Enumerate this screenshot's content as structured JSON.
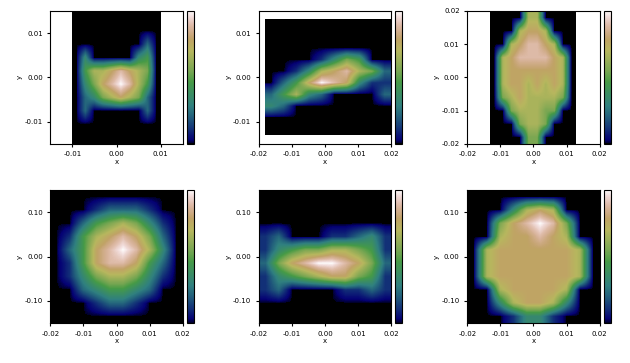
{
  "chart_data": [
    {
      "type": "heatmap",
      "xlabel": "x",
      "ylabel": "y",
      "xlim": [
        -0.015,
        0.015
      ],
      "ylim": [
        -0.015,
        0.015
      ],
      "xticks": [
        {
          "value": -0.01,
          "label": "-0.01"
        },
        {
          "value": 0,
          "label": "0.00"
        },
        {
          "value": 0.01,
          "label": "0.01"
        }
      ],
      "yticks": [
        {
          "value": -0.01,
          "label": "-0.01"
        },
        {
          "value": 0,
          "label": "0.00"
        },
        {
          "value": 0.01,
          "label": "0.01"
        }
      ],
      "extent": [
        -0.01,
        0.01,
        -0.015,
        0.015
      ],
      "clim": [
        0,
        9
      ],
      "cells": [
        [
          0,
          0,
          0,
          0,
          0,
          0,
          0,
          0,
          0,
          0
        ],
        [
          0,
          0,
          0,
          0,
          0,
          0,
          0,
          0,
          0,
          0
        ],
        [
          0,
          0,
          0,
          0,
          0,
          0,
          0,
          0,
          2,
          0
        ],
        [
          0,
          3,
          0,
          0,
          0,
          0,
          0,
          3,
          4,
          0
        ],
        [
          0,
          4,
          6,
          6,
          7,
          8,
          7,
          6,
          5,
          0
        ],
        [
          0,
          3,
          5,
          7,
          8,
          9,
          8,
          6,
          4,
          0
        ],
        [
          0,
          2,
          3,
          5,
          6,
          7,
          6,
          5,
          2,
          0
        ],
        [
          0,
          2,
          0,
          0,
          0,
          0,
          0,
          0,
          2,
          0
        ],
        [
          0,
          0,
          0,
          0,
          0,
          0,
          0,
          0,
          0,
          0
        ],
        [
          0,
          0,
          0,
          0,
          0,
          0,
          0,
          0,
          0,
          0
        ]
      ]
    },
    {
      "type": "heatmap",
      "xlabel": "x",
      "ylabel": "y",
      "xlim": [
        -0.02,
        0.02
      ],
      "ylim": [
        -0.015,
        0.015
      ],
      "xticks": [
        {
          "value": -0.02,
          "label": "-0.02"
        },
        {
          "value": -0.01,
          "label": "-0.01"
        },
        {
          "value": 0,
          "label": "0.00"
        },
        {
          "value": 0.01,
          "label": "0.01"
        },
        {
          "value": 0.02,
          "label": "0.02"
        }
      ],
      "yticks": [
        {
          "value": -0.01,
          "label": "-0.01"
        },
        {
          "value": 0,
          "label": "0.00"
        },
        {
          "value": 0.01,
          "label": "0.01"
        }
      ],
      "extent": [
        -0.018,
        0.02,
        -0.013,
        0.013
      ],
      "clim": [
        0,
        9
      ],
      "cells": [
        [
          0,
          0,
          0,
          0,
          0,
          0,
          0,
          0,
          0,
          0
        ],
        [
          0,
          0,
          0,
          0,
          0,
          0,
          0,
          0,
          0,
          0
        ],
        [
          0,
          0,
          0,
          0,
          0,
          0,
          0,
          0,
          0,
          0
        ],
        [
          0,
          0,
          0,
          0,
          1,
          3,
          5,
          4,
          0,
          0
        ],
        [
          0,
          0,
          1,
          3,
          6,
          7,
          8,
          6,
          5,
          2
        ],
        [
          0,
          2,
          4,
          7,
          9,
          8,
          7,
          3,
          1,
          1
        ],
        [
          2,
          4,
          6,
          3,
          2,
          0,
          0,
          0,
          0,
          2
        ],
        [
          3,
          2,
          0,
          0,
          0,
          0,
          0,
          0,
          0,
          0
        ],
        [
          0,
          0,
          0,
          0,
          0,
          0,
          0,
          0,
          0,
          0
        ],
        [
          0,
          0,
          0,
          0,
          0,
          0,
          0,
          0,
          0,
          0
        ]
      ]
    },
    {
      "type": "heatmap",
      "xlabel": "x",
      "ylabel": "y",
      "xlim": [
        -0.02,
        0.02
      ],
      "ylim": [
        -0.02,
        0.02
      ],
      "xticks": [
        {
          "value": -0.02,
          "label": "-0.02"
        },
        {
          "value": -0.01,
          "label": "-0.01"
        },
        {
          "value": 0,
          "label": "0.00"
        },
        {
          "value": 0.01,
          "label": "0.01"
        },
        {
          "value": 0.02,
          "label": "0.02"
        }
      ],
      "yticks": [
        {
          "value": -0.02,
          "label": "-0.02"
        },
        {
          "value": -0.01,
          "label": "-0.01"
        },
        {
          "value": 0,
          "label": "0.00"
        },
        {
          "value": 0.01,
          "label": "0.01"
        },
        {
          "value": 0.02,
          "label": "0.02"
        }
      ],
      "extent": [
        -0.013,
        0.013,
        -0.02,
        0.02
      ],
      "clim": [
        0,
        9
      ],
      "cells": [
        [
          0,
          0,
          0,
          0,
          6,
          6,
          0,
          0,
          0,
          0
        ],
        [
          0,
          0,
          0,
          6,
          7,
          7,
          6,
          0,
          0,
          0
        ],
        [
          0,
          0,
          6,
          7,
          8,
          8,
          7,
          6,
          0,
          0
        ],
        [
          0,
          6,
          7,
          8,
          8,
          8,
          8,
          7,
          6,
          0
        ],
        [
          0,
          6,
          7,
          7,
          7,
          7,
          7,
          7,
          6,
          0
        ],
        [
          0,
          6,
          7,
          7,
          6,
          7,
          6,
          7,
          6,
          0
        ],
        [
          0,
          5,
          6,
          7,
          6,
          6,
          6,
          6,
          5,
          0
        ],
        [
          0,
          0,
          5,
          6,
          6,
          6,
          5,
          5,
          0,
          0
        ],
        [
          0,
          0,
          0,
          5,
          6,
          6,
          5,
          0,
          0,
          0
        ],
        [
          0,
          0,
          0,
          0,
          5,
          5,
          0,
          0,
          0,
          0
        ]
      ]
    },
    {
      "type": "heatmap",
      "xlabel": "x",
      "ylabel": "y",
      "xlim": [
        -0.02,
        0.02
      ],
      "ylim": [
        -0.15,
        0.15
      ],
      "xticks": [
        {
          "value": -0.02,
          "label": "-0.02"
        },
        {
          "value": -0.01,
          "label": "-0.01"
        },
        {
          "value": 0,
          "label": "0.00"
        },
        {
          "value": 0.01,
          "label": "0.01"
        },
        {
          "value": 0.02,
          "label": "0.02"
        }
      ],
      "yticks": [
        {
          "value": -0.1,
          "label": "-0.10"
        },
        {
          "value": 0,
          "label": "0.00"
        },
        {
          "value": 0.1,
          "label": "0.10"
        }
      ],
      "extent": [
        -0.02,
        0.02,
        -0.15,
        0.15
      ],
      "clim": [
        0,
        9
      ],
      "cells": [
        [
          0,
          0,
          0,
          0,
          0,
          0,
          0,
          0,
          0,
          0
        ],
        [
          0,
          0,
          0,
          1,
          2,
          2,
          2,
          1,
          0,
          0
        ],
        [
          0,
          0,
          2,
          4,
          5,
          6,
          5,
          3,
          1,
          0
        ],
        [
          0,
          1,
          4,
          6,
          7,
          8,
          7,
          5,
          2,
          0
        ],
        [
          0,
          2,
          4,
          7,
          8,
          9,
          8,
          6,
          3,
          0
        ],
        [
          0,
          1,
          4,
          7,
          8,
          8,
          7,
          4,
          2,
          0
        ],
        [
          0,
          1,
          3,
          5,
          6,
          6,
          5,
          3,
          1,
          0
        ],
        [
          0,
          0,
          2,
          3,
          4,
          4,
          3,
          2,
          0,
          0
        ],
        [
          0,
          0,
          0,
          1,
          2,
          2,
          1,
          0,
          0,
          0
        ],
        [
          0,
          0,
          0,
          0,
          0,
          0,
          0,
          0,
          0,
          0
        ]
      ]
    },
    {
      "type": "heatmap",
      "xlabel": "x",
      "ylabel": "y",
      "xlim": [
        -0.02,
        0.02
      ],
      "ylim": [
        -0.15,
        0.15
      ],
      "xticks": [
        {
          "value": -0.02,
          "label": "-0.02"
        },
        {
          "value": -0.01,
          "label": "-0.01"
        },
        {
          "value": 0,
          "label": "0.00"
        },
        {
          "value": 0.01,
          "label": "0.01"
        },
        {
          "value": 0.02,
          "label": "0.02"
        }
      ],
      "yticks": [
        {
          "value": -0.1,
          "label": "-0.10"
        },
        {
          "value": 0,
          "label": "0.00"
        },
        {
          "value": 0.1,
          "label": "0.10"
        }
      ],
      "extent": [
        -0.02,
        0.02,
        -0.15,
        0.15
      ],
      "clim": [
        0,
        9
      ],
      "cells": [
        [
          0,
          0,
          0,
          0,
          0,
          0,
          0,
          0,
          0,
          0
        ],
        [
          0,
          0,
          0,
          0,
          0,
          0,
          0,
          0,
          0,
          0
        ],
        [
          0,
          0,
          0,
          0,
          0,
          0,
          0,
          0,
          0,
          0
        ],
        [
          1,
          2,
          0,
          0,
          0,
          1,
          1,
          2,
          3,
          1
        ],
        [
          1,
          3,
          4,
          5,
          5,
          6,
          6,
          5,
          4,
          1
        ],
        [
          2,
          5,
          7,
          8,
          9,
          9,
          8,
          7,
          5,
          2
        ],
        [
          1,
          3,
          4,
          5,
          6,
          7,
          7,
          5,
          4,
          1
        ],
        [
          1,
          2,
          0,
          0,
          0,
          0,
          1,
          1,
          2,
          1
        ],
        [
          0,
          0,
          0,
          0,
          0,
          0,
          0,
          0,
          0,
          0
        ],
        [
          0,
          0,
          0,
          0,
          0,
          0,
          0,
          0,
          0,
          0
        ]
      ]
    },
    {
      "type": "heatmap",
      "xlabel": "x",
      "ylabel": "y",
      "xlim": [
        -0.02,
        0.02
      ],
      "ylim": [
        -0.15,
        0.15
      ],
      "xticks": [
        {
          "value": -0.02,
          "label": "-0.02"
        },
        {
          "value": -0.01,
          "label": "-0.01"
        },
        {
          "value": 0,
          "label": "0.00"
        },
        {
          "value": 0.01,
          "label": "0.01"
        },
        {
          "value": 0.02,
          "label": "0.02"
        }
      ],
      "yticks": [
        {
          "value": -0.1,
          "label": "-0.10"
        },
        {
          "value": 0,
          "label": "0.00"
        },
        {
          "value": 0.1,
          "label": "0.10"
        }
      ],
      "extent": [
        -0.02,
        0.02,
        -0.15,
        0.15
      ],
      "clim": [
        0,
        9
      ],
      "cells": [
        [
          0,
          0,
          0,
          0,
          0,
          0,
          0,
          0,
          0,
          0
        ],
        [
          0,
          0,
          0,
          3,
          6,
          7,
          6,
          0,
          0,
          0
        ],
        [
          0,
          0,
          5,
          7,
          8,
          9,
          8,
          5,
          0,
          0
        ],
        [
          0,
          0,
          6,
          7,
          7,
          8,
          7,
          6,
          0,
          0
        ],
        [
          0,
          6,
          7,
          7,
          7,
          7,
          7,
          7,
          6,
          0
        ],
        [
          0,
          6,
          7,
          7,
          7,
          7,
          7,
          7,
          6,
          0
        ],
        [
          0,
          6,
          7,
          7,
          7,
          7,
          7,
          7,
          6,
          0
        ],
        [
          0,
          0,
          6,
          7,
          7,
          7,
          7,
          6,
          0,
          0
        ],
        [
          0,
          0,
          3,
          6,
          7,
          7,
          6,
          3,
          0,
          0
        ],
        [
          0,
          0,
          0,
          1,
          3,
          3,
          1,
          0,
          0,
          0
        ]
      ]
    }
  ]
}
